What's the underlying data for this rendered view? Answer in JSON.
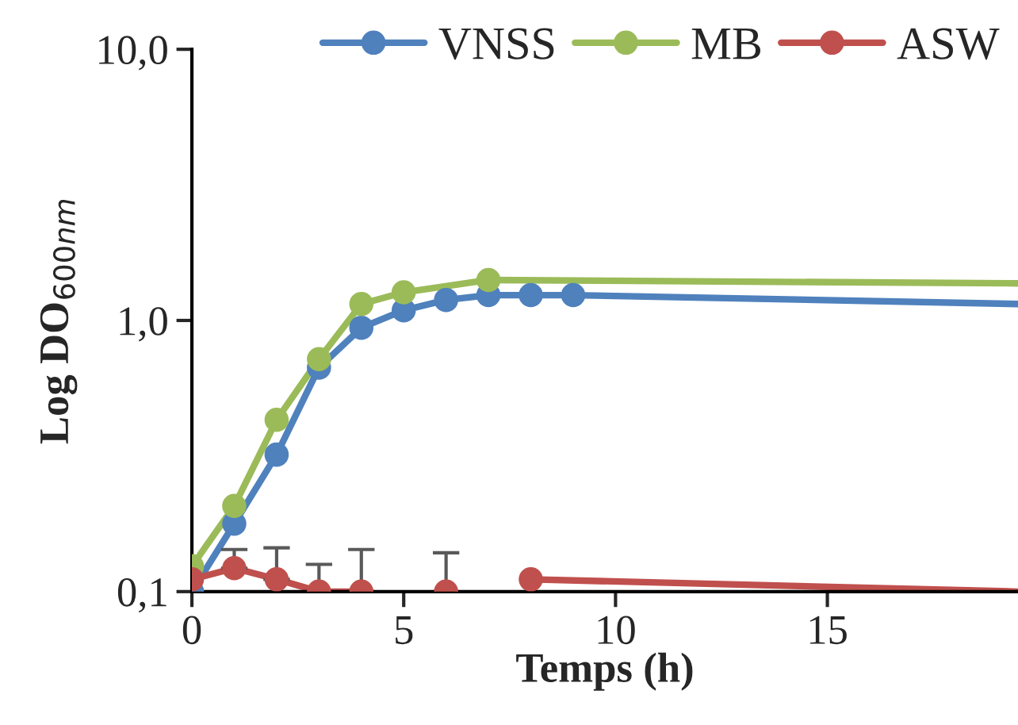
{
  "chart_data": {
    "type": "line",
    "xlabel": "Temps (h)",
    "ylabel": "Log DO$_{600nm}$",
    "log": "y",
    "xlim": [
      0,
      19.5
    ],
    "xticks": [
      0,
      5,
      10,
      15
    ],
    "ylim": [
      0.1,
      10
    ],
    "yticks": [
      {
        "value": 0.1,
        "label": "0,1"
      },
      {
        "value": 1,
        "label": "1,0"
      },
      {
        "value": 10,
        "label": "10,0"
      }
    ],
    "grid": false,
    "legend": "top right",
    "marker": "circle",
    "line_style": "solid",
    "series": [
      {
        "name": "VNSS",
        "color": "#4f81bd",
        "x": [
          0,
          1,
          2,
          3,
          4,
          5,
          6,
          7,
          8,
          9
        ],
        "values": [
          0.1,
          0.178,
          0.32,
          0.67,
          0.94,
          1.09,
          1.19,
          1.24,
          1.24,
          1.24
        ]
      },
      {
        "name": "MB",
        "color": "#9bbb59",
        "x": [
          0,
          1,
          2,
          3,
          4,
          5,
          7
        ],
        "values": [
          0.124,
          0.207,
          0.43,
          0.72,
          1.15,
          1.27,
          1.41
        ]
      },
      {
        "name": "ASW",
        "color": "#c0504d",
        "x": [
          0,
          1,
          2,
          3,
          4,
          5,
          6,
          6.5,
          8
        ],
        "values": [
          0.111,
          0.122,
          0.111,
          0.1,
          0.1,
          null,
          0.1,
          null,
          0.111
        ],
        "errors": [
          null,
          [
            0.122,
            0.143
          ],
          [
            0.111,
            0.145
          ],
          [
            0.1,
            0.126
          ],
          [
            0.1,
            0.143
          ],
          null,
          [
            0.1,
            0.139
          ],
          null,
          null
        ]
      },
      {
        "color": "#4f81bd",
        "marker": "none",
        "x": [
          9,
          19.5
        ],
        "values": [
          1.24,
          1.15
        ]
      },
      {
        "color": "#9bbb59",
        "marker": "none",
        "x": [
          7,
          19.5
        ],
        "values": [
          1.41,
          1.37
        ]
      },
      {
        "color": "#c0504d",
        "marker": "none",
        "x": [
          8,
          19.5
        ],
        "values": [
          0.111,
          0.1
        ]
      }
    ]
  }
}
